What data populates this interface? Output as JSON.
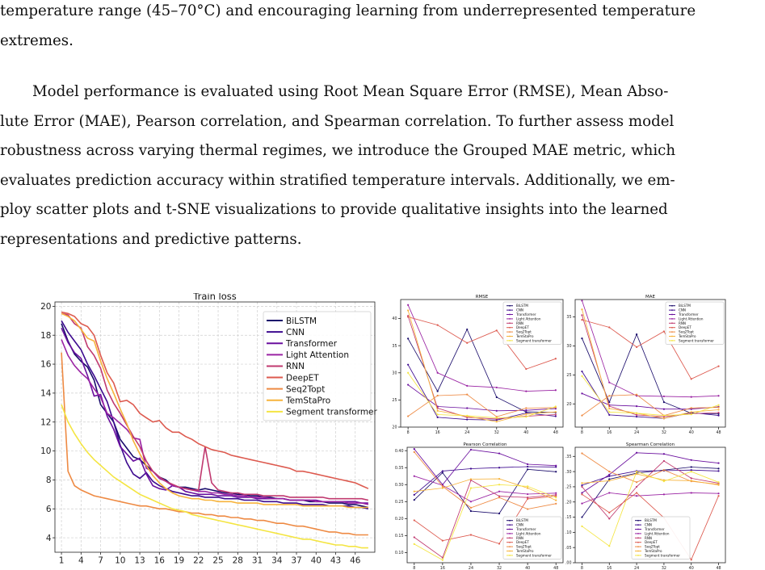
{
  "text": {
    "para1_line1": "temperature range (45–70°C) and encouraging learning from underrepresented temperature",
    "para1_line2": "extremes.",
    "para2_lines": [
      "Model performance is evaluated using Root Mean Square Error (RMSE), Mean Abso-",
      "lute Error (MAE), Pearson correlation, and Spearman correlation. To further assess model",
      "robustness across varying thermal regimes, we introduce the Grouped MAE metric, which",
      "evaluates prediction accuracy within stratified temperature intervals. Additionally, we em-",
      "ploy scatter plots and t-SNE visualizations to provide qualitative insights into the learned",
      "representations and predictive patterns."
    ]
  },
  "colors": {
    "BiLSTM": "#1a0c6b",
    "CNN": "#3d0a8f",
    "Transformer": "#6a0f9e",
    "Light Attention": "#9a23a3",
    "RNN": "#c0396f",
    "DeepET": "#dd5a4f",
    "Seq2Topt": "#ee8a43",
    "TemStaPro": "#f7b33b",
    "Segment transformer": "#f4e542"
  },
  "chart_data": [
    {
      "type": "line",
      "title": "Train loss",
      "xlabel": "",
      "ylabel": "",
      "xlim": [
        0,
        49
      ],
      "ylim": [
        3,
        20.3
      ],
      "xticks": [
        1,
        4,
        7,
        10,
        13,
        16,
        19,
        22,
        25,
        28,
        31,
        34,
        37,
        40,
        43,
        46
      ],
      "yticks": [
        4,
        6,
        8,
        10,
        12,
        14,
        16,
        18,
        20
      ],
      "grid": true,
      "legend": "top-right",
      "series": [
        {
          "name": "BiLSTM",
          "values": [
            18.8,
            17.6,
            16.7,
            16.2,
            15.8,
            14.9,
            13.2,
            12.6,
            12.0,
            10.8,
            10.2,
            9.6,
            9.4,
            9.0,
            8.6,
            8.2,
            8.0,
            7.6,
            7.5,
            7.5,
            7.4,
            7.3,
            7.4,
            7.3,
            7.2,
            7.1,
            7.1,
            7.0,
            7.0,
            6.9,
            6.9,
            6.8,
            6.8,
            6.7,
            6.7,
            6.6,
            6.6,
            6.6,
            6.5,
            6.5,
            6.5,
            6.4,
            6.4,
            6.4,
            6.3,
            6.3,
            6.2,
            6.1
          ]
        },
        {
          "name": "CNN",
          "values": [
            19.0,
            18.2,
            17.6,
            17.0,
            16.0,
            15.2,
            14.3,
            13.4,
            12.0,
            10.4,
            9.2,
            8.4,
            8.1,
            8.5,
            7.9,
            7.6,
            7.4,
            7.2,
            7.1,
            7.0,
            6.9,
            6.9,
            6.8,
            6.8,
            6.8,
            6.7,
            6.7,
            6.7,
            6.6,
            6.6,
            6.6,
            6.5,
            6.5,
            6.5,
            6.4,
            6.4,
            6.4,
            6.3,
            6.3,
            6.3,
            6.3,
            6.2,
            6.2,
            6.2,
            6.2,
            6.1,
            6.1,
            6.0
          ]
        },
        {
          "name": "Transformer",
          "values": [
            18.5,
            17.5,
            16.8,
            16.4,
            15.2,
            13.8,
            13.9,
            12.4,
            11.5,
            10.3,
            9.8,
            9.3,
            9.5,
            8.4,
            7.6,
            7.4,
            7.3,
            7.6,
            7.5,
            7.2,
            7.1,
            7.0,
            7.0,
            7.0,
            6.9,
            6.9,
            6.9,
            6.8,
            6.8,
            6.8,
            6.7,
            6.7,
            6.7,
            6.7,
            6.7,
            6.6,
            6.6,
            6.6,
            6.6,
            6.6,
            6.5,
            6.5,
            6.5,
            6.5,
            6.5,
            6.5,
            6.4,
            6.4
          ]
        },
        {
          "name": "Light Attention",
          "values": [
            17.7,
            16.6,
            15.9,
            15.4,
            15.0,
            14.3,
            13.7,
            12.6,
            12.3,
            11.9,
            11.5,
            10.9,
            10.8,
            8.8,
            8.6,
            8.1,
            7.9,
            7.6,
            7.5,
            7.4,
            7.3,
            7.2,
            7.2,
            7.1,
            7.1,
            7.0,
            7.0,
            6.9,
            6.9,
            6.8,
            6.8,
            6.8,
            6.7,
            6.7,
            6.7,
            6.6,
            6.6,
            6.6,
            6.6,
            6.5,
            6.5,
            6.5,
            6.5,
            6.5,
            6.4,
            6.4,
            6.4,
            6.3
          ]
        },
        {
          "name": "RNN",
          "values": [
            19.5,
            19.4,
            18.8,
            18.5,
            17.2,
            16.6,
            15.7,
            14.2,
            13.3,
            12.6,
            11.8,
            11.0,
            10.3,
            9.3,
            8.6,
            8.2,
            7.9,
            7.7,
            7.5,
            7.4,
            7.3,
            7.3,
            10.3,
            7.8,
            7.3,
            7.2,
            7.1,
            7.1,
            7.0,
            7.0,
            7.0,
            6.9,
            6.9,
            6.9,
            6.9,
            6.8,
            6.8,
            6.8,
            6.8,
            6.8,
            6.8,
            6.7,
            6.7,
            6.7,
            6.7,
            6.7,
            6.7,
            6.6
          ]
        },
        {
          "name": "DeepET",
          "values": [
            19.6,
            19.5,
            19.3,
            18.8,
            18.6,
            18.0,
            16.6,
            15.4,
            14.7,
            13.4,
            13.5,
            13.2,
            12.6,
            12.3,
            12.0,
            12.1,
            11.6,
            11.3,
            11.3,
            11.0,
            10.8,
            10.5,
            10.3,
            10.1,
            10.0,
            9.9,
            9.7,
            9.6,
            9.5,
            9.4,
            9.3,
            9.2,
            9.1,
            9.0,
            8.9,
            8.8,
            8.6,
            8.6,
            8.5,
            8.4,
            8.3,
            8.2,
            8.1,
            8.0,
            7.9,
            7.8,
            7.6,
            7.4
          ]
        },
        {
          "name": "Seq2Topt",
          "values": [
            16.8,
            8.6,
            7.6,
            7.3,
            7.1,
            6.9,
            6.8,
            6.7,
            6.6,
            6.5,
            6.4,
            6.3,
            6.2,
            6.2,
            6.1,
            6.0,
            6.0,
            5.9,
            5.8,
            5.8,
            5.7,
            5.7,
            5.6,
            5.6,
            5.5,
            5.5,
            5.4,
            5.4,
            5.3,
            5.3,
            5.2,
            5.2,
            5.1,
            5.0,
            5.0,
            4.9,
            4.8,
            4.8,
            4.7,
            4.6,
            4.5,
            4.4,
            4.4,
            4.3,
            4.3,
            4.2,
            4.2,
            4.2
          ]
        },
        {
          "name": "TemStaPro",
          "values": [
            19.5,
            19.3,
            19.0,
            18.4,
            17.8,
            17.6,
            16.2,
            15.0,
            14.0,
            12.9,
            11.9,
            10.7,
            9.8,
            9.0,
            8.3,
            7.8,
            7.4,
            7.1,
            6.9,
            6.8,
            6.7,
            6.7,
            6.6,
            6.6,
            6.5,
            6.5,
            6.5,
            6.4,
            6.4,
            6.4,
            6.4,
            6.3,
            6.3,
            6.3,
            6.3,
            6.3,
            6.3,
            6.2,
            6.2,
            6.2,
            6.2,
            6.2,
            6.2,
            6.2,
            6.1,
            6.1,
            6.1,
            6.1
          ]
        },
        {
          "name": "Segment transformer",
          "values": [
            13.2,
            12.0,
            11.2,
            10.5,
            9.9,
            9.4,
            9.0,
            8.6,
            8.2,
            7.9,
            7.6,
            7.3,
            7.0,
            6.8,
            6.6,
            6.4,
            6.2,
            6.0,
            5.9,
            5.8,
            5.6,
            5.5,
            5.4,
            5.3,
            5.2,
            5.1,
            5.0,
            4.9,
            4.8,
            4.7,
            4.6,
            4.5,
            4.4,
            4.3,
            4.2,
            4.1,
            4.0,
            3.9,
            3.9,
            3.8,
            3.7,
            3.6,
            3.5,
            3.5,
            3.4,
            3.4,
            3.3,
            3.3
          ]
        }
      ]
    },
    {
      "type": "line",
      "title": "RMSE",
      "x": [
        8,
        16,
        24,
        32,
        40,
        48
      ],
      "ylim": [
        20,
        43.5
      ],
      "yticks": [
        20,
        25,
        30,
        35,
        40
      ],
      "legend": "top-right",
      "series": [
        {
          "name": "BiLSTM",
          "values": [
            36.3,
            26.6,
            38.0,
            25.5,
            22.8,
            22.7
          ]
        },
        {
          "name": "CNN",
          "values": [
            31.5,
            21.8,
            21.4,
            21.3,
            22.6,
            22.0
          ]
        },
        {
          "name": "Transformer",
          "values": [
            27.8,
            23.8,
            23.5,
            23.0,
            23.1,
            23.4
          ]
        },
        {
          "name": "Light Attention",
          "values": [
            42.5,
            30.0,
            27.6,
            27.3,
            26.6,
            26.8
          ]
        },
        {
          "name": "RNN",
          "values": [
            40.5,
            23.5,
            21.8,
            21.5,
            22.0,
            22.3
          ]
        },
        {
          "name": "DeepET",
          "values": [
            40.3,
            38.8,
            35.5,
            37.8,
            30.7,
            32.6
          ]
        },
        {
          "name": "Seq2Topt",
          "values": [
            22.0,
            25.8,
            26.0,
            21.9,
            23.5,
            23.6
          ]
        },
        {
          "name": "TemStaPro",
          "values": [
            41.5,
            23.0,
            22.0,
            21.0,
            22.4,
            22.8
          ]
        },
        {
          "name": "Segment transformer",
          "values": [
            30.0,
            22.3,
            22.1,
            21.7,
            21.9,
            23.8
          ]
        }
      ]
    },
    {
      "type": "line",
      "title": "MAE",
      "x": [
        8,
        16,
        24,
        32,
        40,
        48
      ],
      "ylim": [
        16,
        38
      ],
      "yticks": [
        20,
        25,
        30,
        35
      ],
      "legend": "top-right",
      "series": [
        {
          "name": "BiLSTM",
          "values": [
            31.3,
            20.3,
            32.0,
            20.3,
            18.4,
            18.3
          ]
        },
        {
          "name": "CNN",
          "values": [
            25.6,
            18.1,
            17.8,
            17.5,
            18.5,
            18.0
          ]
        },
        {
          "name": "Transformer",
          "values": [
            21.8,
            19.8,
            19.6,
            19.1,
            19.1,
            19.5
          ]
        },
        {
          "name": "Light Attention",
          "values": [
            37.8,
            23.7,
            21.4,
            21.3,
            21.2,
            21.4
          ]
        },
        {
          "name": "RNN",
          "values": [
            35.3,
            19.6,
            18.1,
            17.8,
            18.3,
            18.5
          ]
        },
        {
          "name": "DeepET",
          "values": [
            34.5,
            33.2,
            29.8,
            32.5,
            24.3,
            26.5
          ]
        },
        {
          "name": "Seq2Topt",
          "values": [
            18.0,
            21.4,
            21.6,
            18.0,
            19.3,
            19.4
          ]
        },
        {
          "name": "TemStaPro",
          "values": [
            36.3,
            19.2,
            18.4,
            17.5,
            18.6,
            19.0
          ]
        },
        {
          "name": "Segment transformer",
          "values": [
            24.8,
            18.6,
            18.4,
            18.0,
            18.2,
            19.8
          ]
        }
      ]
    },
    {
      "type": "line",
      "title": "Pearson Correlation",
      "x": [
        8,
        16,
        24,
        32,
        40,
        48
      ],
      "ylim": [
        0.07,
        0.41
      ],
      "yticks": [
        0.1,
        0.15,
        0.2,
        0.25,
        0.3,
        0.35,
        0.4
      ],
      "legend": "bottom-right",
      "series": [
        {
          "name": "BiLSTM",
          "values": [
            0.255,
            0.335,
            0.222,
            0.215,
            0.345,
            0.338
          ]
        },
        {
          "name": "CNN",
          "values": [
            0.27,
            0.34,
            0.347,
            0.35,
            0.353,
            0.352
          ]
        },
        {
          "name": "Transformer",
          "values": [
            0.405,
            0.3,
            0.403,
            0.392,
            0.36,
            0.356
          ]
        },
        {
          "name": "Light Attention",
          "values": [
            0.325,
            0.298,
            0.25,
            0.28,
            0.272,
            0.275
          ]
        },
        {
          "name": "RNN",
          "values": [
            0.145,
            0.085,
            0.313,
            0.266,
            0.262,
            0.27
          ]
        },
        {
          "name": "DeepET",
          "values": [
            0.195,
            0.135,
            0.152,
            0.126,
            0.258,
            0.266
          ]
        },
        {
          "name": "Seq2Topt",
          "values": [
            0.396,
            0.295,
            0.232,
            0.262,
            0.228,
            0.244
          ]
        },
        {
          "name": "TemStaPro",
          "values": [
            0.28,
            0.29,
            0.316,
            0.317,
            0.29,
            0.254
          ]
        },
        {
          "name": "Segment transformer",
          "values": [
            0.125,
            0.078,
            0.29,
            0.3,
            0.295,
            0.262
          ]
        }
      ]
    },
    {
      "type": "line",
      "title": "Spearman Correlation",
      "x": [
        8,
        16,
        24,
        32,
        40,
        48
      ],
      "ylim": [
        0.0,
        0.38
      ],
      "yticks": [
        0.0,
        0.05,
        0.1,
        0.15,
        0.2,
        0.25,
        0.3,
        0.35
      ],
      "legend": "bottom-right",
      "series": [
        {
          "name": "BiLSTM",
          "values": [
            0.15,
            0.275,
            0.295,
            0.305,
            0.315,
            0.31
          ]
        },
        {
          "name": "CNN",
          "values": [
            0.255,
            0.285,
            0.302,
            0.303,
            0.305,
            0.302
          ]
        },
        {
          "name": "Transformer",
          "values": [
            0.23,
            0.29,
            0.362,
            0.358,
            0.338,
            0.328
          ]
        },
        {
          "name": "Light Attention",
          "values": [
            0.195,
            0.23,
            0.22,
            0.225,
            0.23,
            0.228
          ]
        },
        {
          "name": "RNN",
          "values": [
            0.25,
            0.145,
            0.25,
            0.335,
            0.278,
            0.262
          ]
        },
        {
          "name": "DeepET",
          "values": [
            0.225,
            0.165,
            0.23,
            0.148,
            0.01,
            0.22
          ]
        },
        {
          "name": "Seq2Topt",
          "values": [
            0.36,
            0.3,
            0.265,
            0.305,
            0.268,
            0.258
          ]
        },
        {
          "name": "TemStaPro",
          "values": [
            0.262,
            0.27,
            0.292,
            0.272,
            0.27,
            0.256
          ]
        },
        {
          "name": "Segment transformer",
          "values": [
            0.12,
            0.055,
            0.3,
            0.268,
            0.3,
            0.265
          ]
        }
      ]
    }
  ]
}
